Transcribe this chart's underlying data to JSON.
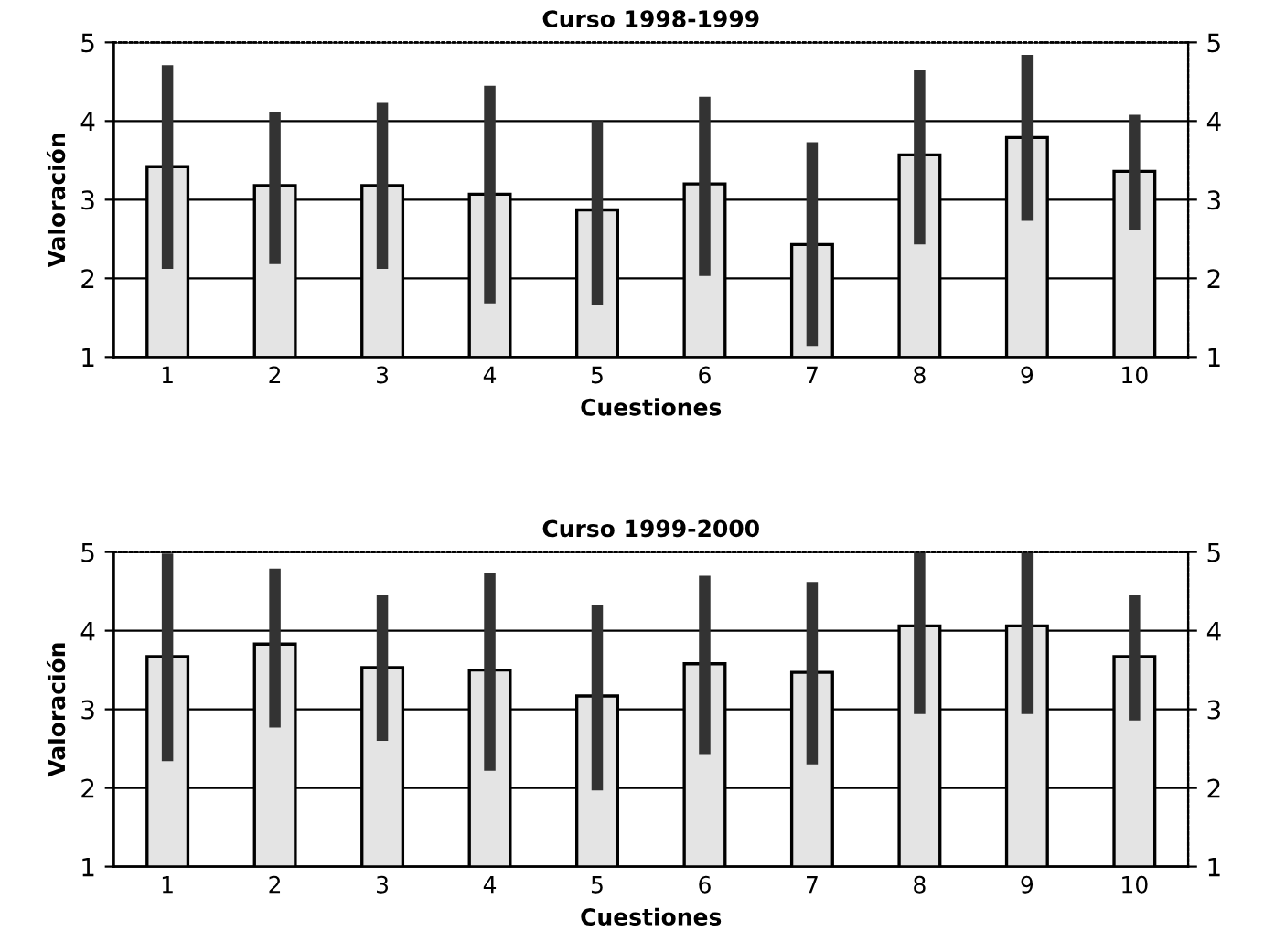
{
  "chart_data": [
    {
      "type": "bar",
      "title": "Curso 1998-1999",
      "xlabel": "Cuestiones",
      "ylabel": "Valoración",
      "categories": [
        "1",
        "2",
        "3",
        "4",
        "5",
        "6",
        "7",
        "8",
        "9",
        "10"
      ],
      "series": [
        {
          "color": "#e4e4e4",
          "values": [
            3.42,
            3.18,
            3.18,
            3.07,
            2.87,
            3.2,
            2.43,
            3.57,
            3.79,
            3.36
          ],
          "errors": [
            [
              2.12,
              4.71
            ],
            [
              2.18,
              4.12
            ],
            [
              2.12,
              4.23
            ],
            [
              1.68,
              4.45
            ],
            [
              1.66,
              4.0
            ],
            [
              2.03,
              4.31
            ],
            [
              1.14,
              3.73
            ],
            [
              2.43,
              4.65
            ],
            [
              2.73,
              4.84
            ],
            [
              2.61,
              4.08
            ]
          ]
        }
      ],
      "ylim": [
        1,
        5
      ],
      "yticks": [
        1,
        2,
        3,
        4,
        5
      ],
      "y2lim": [
        1,
        5
      ],
      "y2ticks": [
        1,
        2,
        3,
        4,
        5
      ],
      "grid": "y",
      "legend": false
    },
    {
      "type": "bar",
      "title": "Curso 1999-2000",
      "xlabel": "Cuestiones",
      "ylabel": "Valoración",
      "categories": [
        "1",
        "2",
        "3",
        "4",
        "5",
        "6",
        "7",
        "8",
        "9",
        "10"
      ],
      "series": [
        {
          "color": "#e4e4e4",
          "values": [
            3.67,
            3.83,
            3.53,
            3.5,
            3.17,
            3.58,
            3.47,
            4.06,
            4.06,
            3.67
          ],
          "errors": [
            [
              2.34,
              4.98
            ],
            [
              2.77,
              4.79
            ],
            [
              2.6,
              4.45
            ],
            [
              2.22,
              4.73
            ],
            [
              1.97,
              4.33
            ],
            [
              2.43,
              4.7
            ],
            [
              2.3,
              4.62
            ],
            [
              2.94,
              5.0
            ],
            [
              2.94,
              5.0
            ],
            [
              2.86,
              4.45
            ]
          ]
        }
      ],
      "ylim": [
        1,
        5
      ],
      "yticks": [
        1,
        2,
        3,
        4,
        5
      ],
      "y2lim": [
        1,
        5
      ],
      "y2ticks": [
        1,
        2,
        3,
        4,
        5
      ],
      "grid": "y",
      "legend": false
    }
  ]
}
